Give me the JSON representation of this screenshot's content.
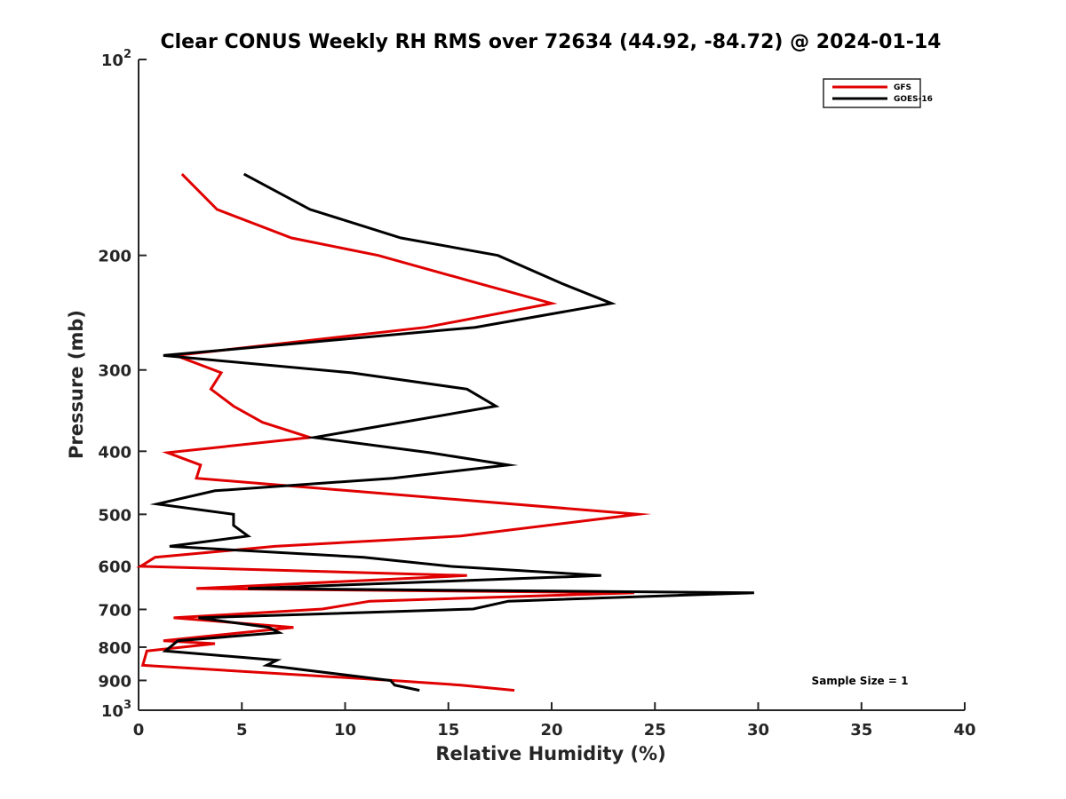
{
  "chart_data": {
    "type": "line",
    "title": "Clear CONUS Weekly RH RMS over 72634 (44.92, -84.72) @ 2024-01-14",
    "xlabel": "Relative Humidity (%)",
    "ylabel": "Pressure (mb)",
    "xlim": [
      0,
      40
    ],
    "ylim": [
      100,
      1000
    ],
    "yscale": "log",
    "y_reversed": true,
    "x_ticks": [
      0,
      5,
      10,
      15,
      20,
      25,
      30,
      35,
      40
    ],
    "x_tick_labels": [
      "0",
      "5",
      "10",
      "15",
      "20",
      "25",
      "30",
      "35",
      "40"
    ],
    "y_ticks": [
      100,
      200,
      300,
      400,
      500,
      600,
      700,
      800,
      900,
      1000
    ],
    "y_tick_labels": [
      "10^2",
      "200",
      "300",
      "400",
      "500",
      "600",
      "700",
      "800",
      "900",
      "10^3"
    ],
    "legend_position": "top-right",
    "annotation": "Sample Size = 1",
    "series": [
      {
        "name": "GFS",
        "color": "#e00000",
        "points": [
          [
            2.1,
            150
          ],
          [
            3.8,
            170
          ],
          [
            7.4,
            188
          ],
          [
            11.6,
            200
          ],
          [
            16.5,
            221
          ],
          [
            20.0,
            237
          ],
          [
            13.9,
            258
          ],
          [
            1.8,
            285
          ],
          [
            4.0,
            303
          ],
          [
            3.5,
            321
          ],
          [
            4.6,
            341
          ],
          [
            6.0,
            361
          ],
          [
            8.3,
            381
          ],
          [
            1.4,
            402
          ],
          [
            3.0,
            420
          ],
          [
            2.8,
            440
          ],
          [
            24.2,
            500
          ],
          [
            15.6,
            540
          ],
          [
            6.6,
            560
          ],
          [
            0.8,
            582
          ],
          [
            0.1,
            601
          ],
          [
            15.9,
            621
          ],
          [
            2.8,
            650
          ],
          [
            24.0,
            660
          ],
          [
            11.2,
            680
          ],
          [
            8.9,
            699
          ],
          [
            1.7,
            721
          ],
          [
            7.5,
            746
          ],
          [
            1.2,
            782
          ],
          [
            3.7,
            790
          ],
          [
            0.4,
            811
          ],
          [
            0.2,
            853
          ],
          [
            12.3,
            900
          ],
          [
            15.6,
            915
          ],
          [
            18.2,
            932
          ]
        ]
      },
      {
        "name": "GOES-16",
        "color": "#000000",
        "points": [
          [
            5.1,
            150
          ],
          [
            8.3,
            170
          ],
          [
            12.7,
            188
          ],
          [
            17.4,
            200
          ],
          [
            20.5,
            221
          ],
          [
            22.9,
            237
          ],
          [
            16.3,
            258
          ],
          [
            1.2,
            285
          ],
          [
            10.3,
            303
          ],
          [
            15.9,
            321
          ],
          [
            17.3,
            341
          ],
          [
            8.5,
            381
          ],
          [
            14.1,
            402
          ],
          [
            17.9,
            420
          ],
          [
            12.3,
            440
          ],
          [
            3.7,
            460
          ],
          [
            0.9,
            482
          ],
          [
            4.6,
            500
          ],
          [
            4.6,
            520
          ],
          [
            5.3,
            540
          ],
          [
            1.5,
            560
          ],
          [
            10.9,
            582
          ],
          [
            15.1,
            601
          ],
          [
            22.4,
            621
          ],
          [
            5.3,
            650
          ],
          [
            29.8,
            660
          ],
          [
            17.9,
            680
          ],
          [
            16.2,
            699
          ],
          [
            2.9,
            721
          ],
          [
            6.3,
            746
          ],
          [
            6.8,
            760
          ],
          [
            1.9,
            782
          ],
          [
            1.3,
            811
          ],
          [
            6.7,
            838
          ],
          [
            6.2,
            853
          ],
          [
            12.2,
            900
          ],
          [
            12.4,
            915
          ],
          [
            13.6,
            932
          ]
        ]
      }
    ]
  }
}
